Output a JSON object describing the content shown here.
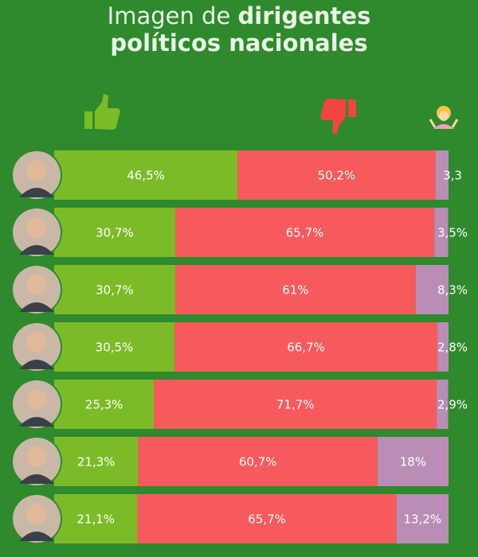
{
  "chart_data": {
    "type": "stacked-bar-horizontal",
    "title": {
      "regular": "Imagen de",
      "bold_first": "dirigentes",
      "bold_second": "políticos nacionales"
    },
    "categories": [
      null,
      null,
      null,
      null,
      null,
      null,
      null
    ],
    "xlim": [
      0,
      100
    ],
    "series": [
      {
        "color": "#7cbb28",
        "values": [
          46.5,
          30.7,
          30.7,
          30.5,
          25.3,
          21.3,
          21.1
        ],
        "value_labels": [
          "46,5%",
          "30,7%",
          "30,7%",
          "30,5%",
          "25,3%",
          "21,3%",
          "21,1%"
        ]
      },
      {
        "color": "#f65a5c",
        "values": [
          50.2,
          65.7,
          61,
          66.7,
          71.7,
          60.7,
          65.7
        ],
        "value_labels": [
          "50,2%",
          "65,7%",
          "61%",
          "66,7%",
          "71,7%",
          "60,7%",
          "65,7%"
        ]
      },
      {
        "color": "#b98db6",
        "values": [
          3.3,
          3.5,
          8.3,
          2.8,
          2.9,
          18,
          13.2
        ],
        "value_labels": [
          "3,3",
          "3,5%",
          "8,3%",
          "2,8%",
          "2,9%",
          "18%",
          "13,2%"
        ]
      }
    ]
  }
}
